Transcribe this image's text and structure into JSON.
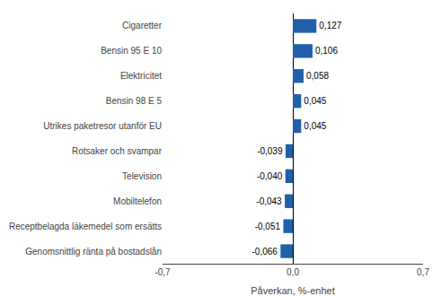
{
  "chart_data": {
    "type": "bar",
    "orientation": "horizontal",
    "categories": [
      "Genomsnittlig ränta på bostadslån",
      "Receptbelagda läkemedel som ersätts",
      "Mobiltelefon",
      "Television",
      "Rotsaker och svampar",
      "Utrikes paketresor utanför EU",
      "Bensin 98 E 5",
      "Elektricitet",
      "Bensin 95 E 10",
      "Cigaretter"
    ],
    "values": [
      -0.066,
      -0.051,
      -0.043,
      -0.04,
      -0.039,
      0.045,
      0.045,
      0.058,
      0.106,
      0.127
    ],
    "value_labels": [
      "-0,066",
      "-0,051",
      "-0,043",
      "-0,040",
      "-0,039",
      "0,045",
      "0,045",
      "0,058",
      "0,106",
      "0,127"
    ],
    "data_labels": true,
    "color": "#2060a8",
    "xlabel": "Påverkan, %-enhet",
    "xlim": [
      -0.7,
      0.7
    ],
    "xticks": [
      {
        "value": -0.7,
        "label": "-0,7"
      },
      {
        "value": 0.0,
        "label": "0,0"
      },
      {
        "value": 0.7,
        "label": "0,7"
      }
    ],
    "grid": true
  }
}
